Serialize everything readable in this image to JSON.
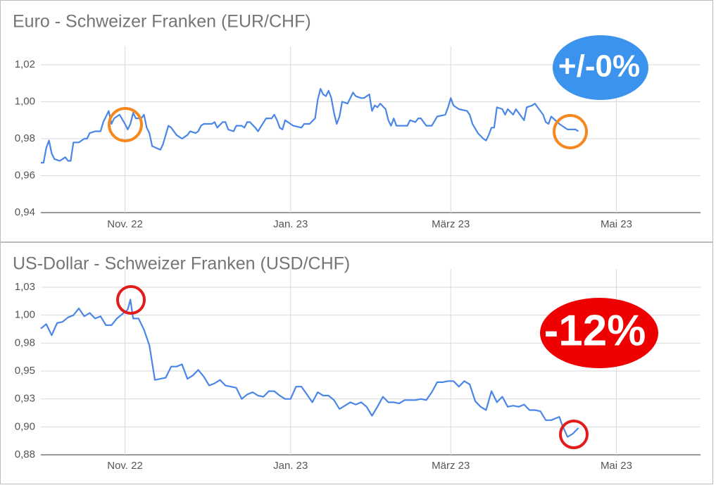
{
  "chart_data": [
    {
      "type": "line",
      "title": "Euro - Schweizer Franken (EUR/CHF)",
      "annotation": "+/-0%",
      "color": "#4a86e8",
      "grid": true,
      "xlim": [
        0,
        243
      ],
      "xticks": [
        {
          "value": 31,
          "label": "Nov. 22"
        },
        {
          "value": 92,
          "label": "Jan. 23"
        },
        {
          "value": 151,
          "label": "März 23"
        },
        {
          "value": 212,
          "label": "Mai 23"
        }
      ],
      "ylim": [
        0.94,
        1.02
      ],
      "yticks": [
        {
          "value": 0.94,
          "label": "0,94"
        },
        {
          "value": 0.96,
          "label": "0,96"
        },
        {
          "value": 0.98,
          "label": "0,98"
        },
        {
          "value": 1.0,
          "label": "1,00"
        },
        {
          "value": 1.02,
          "label": "1,02"
        }
      ],
      "x": [
        0,
        1,
        2,
        3,
        4,
        5,
        7,
        9,
        10,
        11,
        12,
        14,
        16,
        17,
        18,
        20,
        22,
        23,
        24,
        25,
        26,
        27,
        29,
        31,
        32,
        33,
        34,
        35,
        37,
        38,
        39,
        40,
        41,
        44,
        45,
        47,
        48,
        50,
        52,
        54,
        55,
        57,
        58,
        59,
        60,
        63,
        64,
        65,
        67,
        68,
        69,
        71,
        72,
        74,
        75,
        76,
        77,
        79,
        80,
        83,
        85,
        86,
        87,
        88,
        89,
        90,
        91,
        93,
        96,
        97,
        99,
        101,
        102,
        103,
        104,
        105,
        106,
        107,
        108,
        109,
        110,
        111,
        113,
        114,
        115,
        116,
        118,
        119,
        121,
        122,
        123,
        124,
        125,
        127,
        128,
        129,
        130,
        131,
        135,
        136,
        138,
        139,
        140,
        142,
        144,
        146,
        149,
        150,
        151,
        152,
        154,
        157,
        158,
        159,
        161,
        163,
        164,
        165,
        166,
        167,
        168,
        170,
        171,
        172,
        174,
        175,
        177,
        178,
        179,
        181,
        182,
        183,
        184,
        185,
        186,
        187,
        188,
        191,
        192,
        194,
        197,
        198
      ],
      "values": [
        0.967,
        0.967,
        0.975,
        0.979,
        0.972,
        0.969,
        0.968,
        0.97,
        0.968,
        0.968,
        0.978,
        0.978,
        0.98,
        0.98,
        0.983,
        0.984,
        0.984,
        0.989,
        0.992,
        0.995,
        0.988,
        0.991,
        0.993,
        0.988,
        0.985,
        0.988,
        0.994,
        0.991,
        0.991,
        0.993,
        0.986,
        0.983,
        0.976,
        0.974,
        0.977,
        0.987,
        0.986,
        0.982,
        0.98,
        0.982,
        0.984,
        0.983,
        0.984,
        0.987,
        0.988,
        0.988,
        0.989,
        0.986,
        0.989,
        0.989,
        0.985,
        0.984,
        0.987,
        0.987,
        0.986,
        0.989,
        0.989,
        0.986,
        0.984,
        0.991,
        0.991,
        0.993,
        0.99,
        0.986,
        0.985,
        0.99,
        0.989,
        0.987,
        0.986,
        0.988,
        0.988,
        0.991,
        1.001,
        1.007,
        1.004,
        1.003,
        1.006,
        1.002,
        0.994,
        0.988,
        0.992,
        1.0,
        0.999,
        1.002,
        1.005,
        1.003,
        1.002,
        1.002,
        1.004,
        0.995,
        0.998,
        0.997,
        0.999,
        0.996,
        0.99,
        0.987,
        0.991,
        0.987,
        0.987,
        0.99,
        0.989,
        0.991,
        0.991,
        0.987,
        0.987,
        0.992,
        0.993,
        0.997,
        1.002,
        0.998,
        0.996,
        0.995,
        0.993,
        0.988,
        0.983,
        0.98,
        0.979,
        0.982,
        0.986,
        0.986,
        0.997,
        0.996,
        0.993,
        0.996,
        0.993,
        0.996,
        0.992,
        0.99,
        0.997,
        0.998,
        0.999,
        0.997,
        0.995,
        0.993,
        0.989,
        0.988,
        0.992,
        0.988,
        0.987,
        0.985,
        0.985,
        0.984
      ]
    },
    {
      "type": "line",
      "title": "US-Dollar - Schweizer Franken (USD/CHF)",
      "annotation": "-12%",
      "color": "#4a86e8",
      "grid": true,
      "xlim": [
        0,
        243
      ],
      "xticks": [
        {
          "value": 31,
          "label": "Nov. 22"
        },
        {
          "value": 92,
          "label": "Jan. 23"
        },
        {
          "value": 151,
          "label": "März 23"
        },
        {
          "value": 212,
          "label": "Mai 23"
        }
      ],
      "ylim": [
        0.875,
        1.025
      ],
      "yticks": [
        {
          "value": 0.875,
          "label": "0,88"
        },
        {
          "value": 0.9,
          "label": "0,90"
        },
        {
          "value": 0.925,
          "label": "0,93"
        },
        {
          "value": 0.95,
          "label": "0,95"
        },
        {
          "value": 0.975,
          "label": "0,98"
        },
        {
          "value": 1.0,
          "label": "1,00"
        },
        {
          "value": 1.025,
          "label": "1,03"
        }
      ],
      "x": [
        0,
        2,
        4,
        6,
        8,
        10,
        12,
        14,
        16,
        18,
        20,
        22,
        24,
        26,
        28,
        30,
        32,
        33,
        34,
        36,
        38,
        40,
        42,
        44,
        46,
        48,
        50,
        52,
        54,
        56,
        58,
        60,
        62,
        64,
        66,
        68,
        70,
        72,
        74,
        76,
        78,
        80,
        82,
        84,
        86,
        88,
        90,
        92,
        94,
        96,
        98,
        100,
        102,
        104,
        106,
        108,
        110,
        112,
        114,
        116,
        118,
        120,
        122,
        124,
        126,
        128,
        130,
        132,
        134,
        136,
        138,
        140,
        142,
        144,
        146,
        148,
        150,
        152,
        154,
        156,
        158,
        160,
        162,
        164,
        166,
        168,
        170,
        172,
        174,
        176,
        178,
        180,
        182,
        184,
        186,
        188,
        190,
        191,
        192,
        194,
        196,
        198
      ],
      "values": [
        0.988,
        0.992,
        0.982,
        0.993,
        0.994,
        0.998,
        1.0,
        1.006,
        0.999,
        1.002,
        0.997,
        0.999,
        0.991,
        0.991,
        0.997,
        1.001,
        1.005,
        1.014,
        0.997,
        0.997,
        0.987,
        0.973,
        0.942,
        0.943,
        0.944,
        0.954,
        0.954,
        0.956,
        0.943,
        0.946,
        0.951,
        0.945,
        0.937,
        0.939,
        0.942,
        0.937,
        0.936,
        0.935,
        0.925,
        0.929,
        0.931,
        0.928,
        0.927,
        0.932,
        0.932,
        0.928,
        0.925,
        0.925,
        0.936,
        0.936,
        0.929,
        0.922,
        0.931,
        0.928,
        0.928,
        0.924,
        0.916,
        0.919,
        0.922,
        0.92,
        0.922,
        0.918,
        0.91,
        0.918,
        0.927,
        0.922,
        0.922,
        0.921,
        0.924,
        0.924,
        0.924,
        0.925,
        0.924,
        0.931,
        0.94,
        0.94,
        0.941,
        0.941,
        0.936,
        0.941,
        0.938,
        0.923,
        0.918,
        0.915,
        0.932,
        0.922,
        0.927,
        0.918,
        0.919,
        0.918,
        0.92,
        0.915,
        0.915,
        0.914,
        0.906,
        0.906,
        0.908,
        0.909,
        0.902,
        0.891,
        0.894,
        0.899
      ]
    }
  ]
}
